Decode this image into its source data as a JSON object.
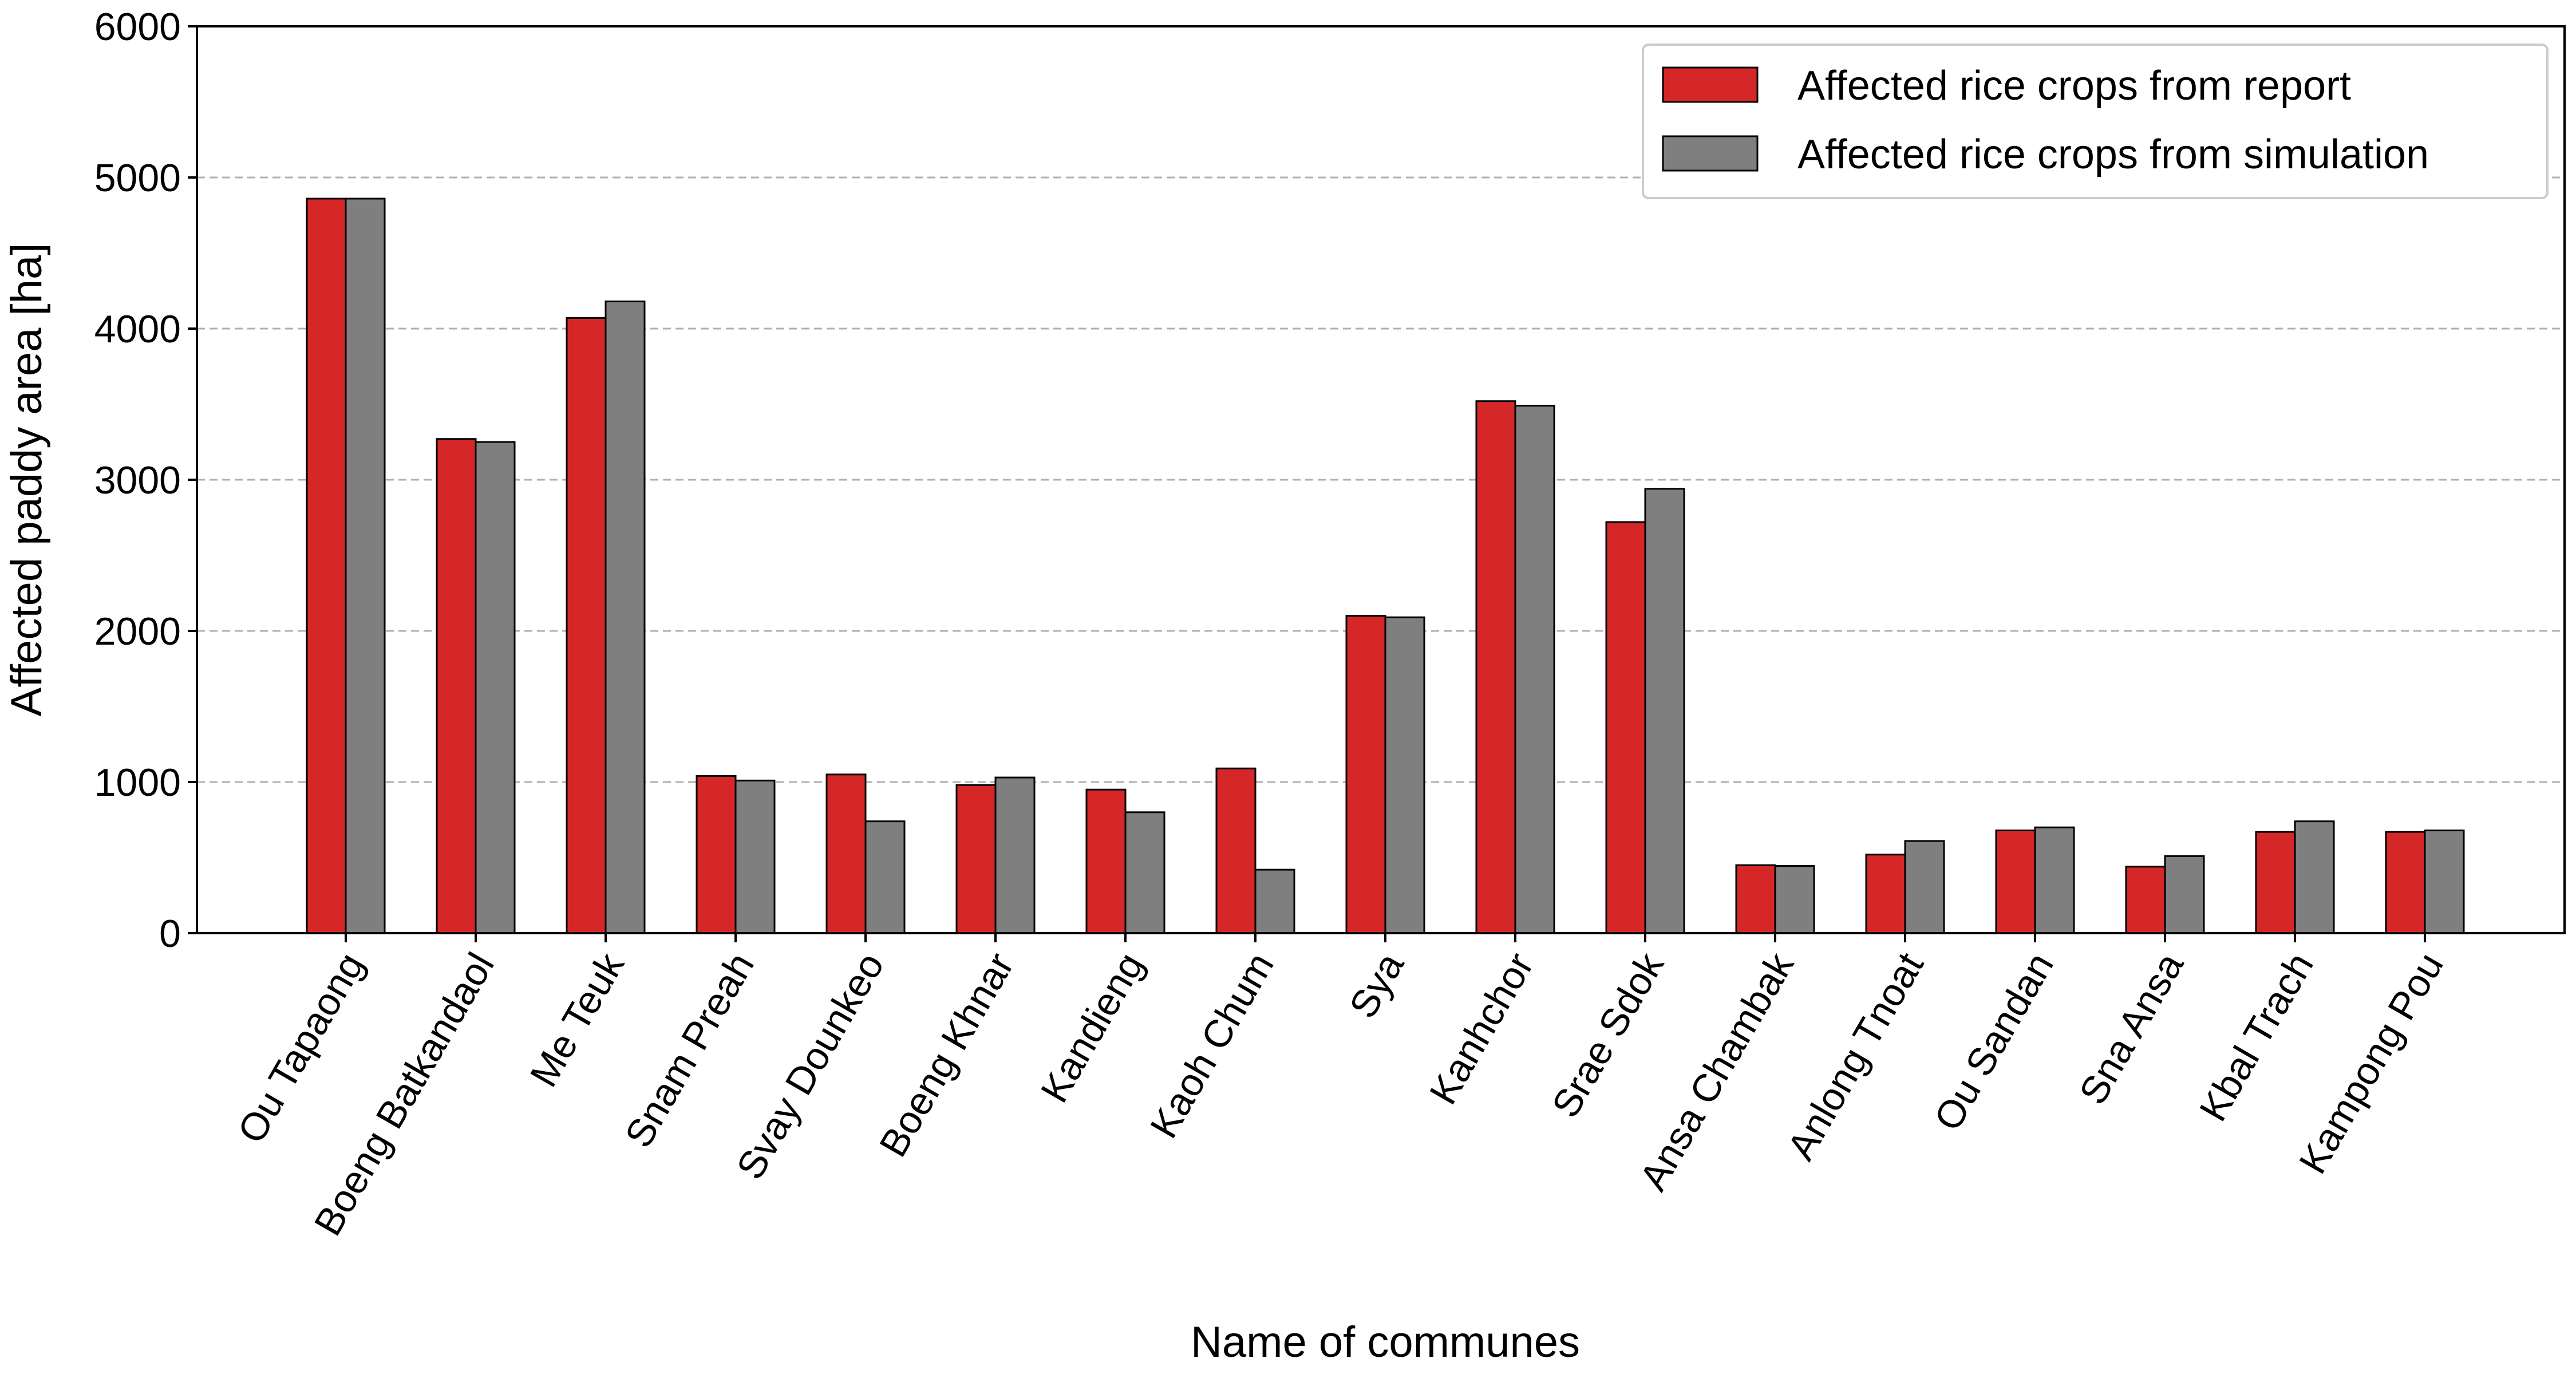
{
  "chart_data": {
    "type": "bar",
    "xlabel": "Name of communes",
    "ylabel": "Affected paddy area [ha]",
    "ylim": [
      0,
      6000
    ],
    "yticks": [
      0,
      1000,
      2000,
      3000,
      4000,
      5000,
      6000
    ],
    "grid": "horizontal dashed",
    "legend_position": "top-right",
    "categories": [
      "Ou Tapaong",
      "Boeng Batkandaol",
      "Me Teuk",
      "Snam Preah",
      "Svay Dounkeo",
      "Boeng Khnar",
      "Kandieng",
      "Kaoh Chum",
      "Sya",
      "Kanhchor",
      "Srae Sdok",
      "Ansa Chambak",
      "Anlong Tnoat",
      "Ou Sandan",
      "Sna Ansa",
      "Kbal Trach",
      "Kampong Pou"
    ],
    "series": [
      {
        "name": "Affected rice crops from report",
        "color": "#d62728",
        "values": [
          4860,
          3270,
          4070,
          1040,
          1050,
          980,
          950,
          1090,
          2100,
          3520,
          2720,
          450,
          520,
          680,
          440,
          670,
          670
        ]
      },
      {
        "name": "Affected rice crops from simulation",
        "color": "#7f7f7f",
        "values": [
          4860,
          3250,
          4180,
          1010,
          740,
          1030,
          800,
          420,
          2090,
          3490,
          2940,
          445,
          610,
          700,
          510,
          740,
          680
        ]
      }
    ]
  }
}
